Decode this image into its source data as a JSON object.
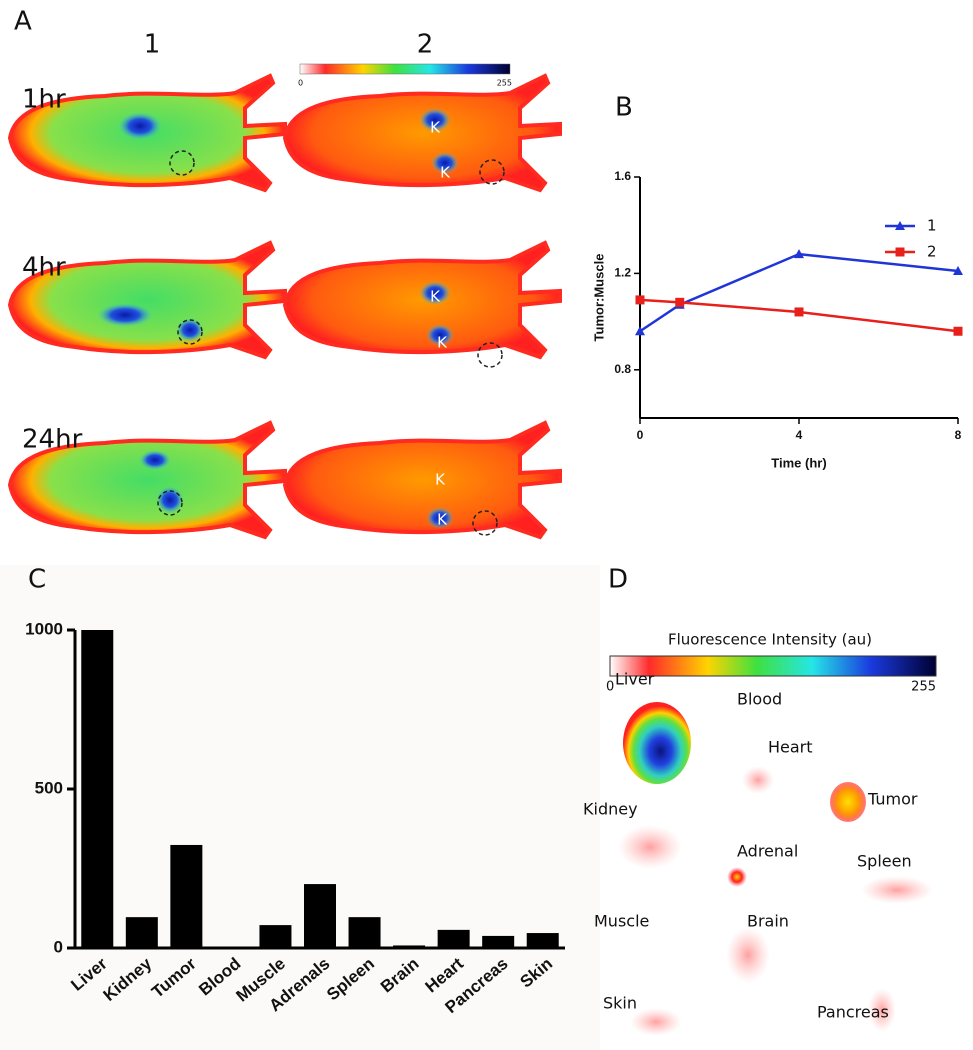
{
  "panel_a": {
    "label": "A",
    "columns": [
      "1",
      "2"
    ],
    "rows": [
      "1hr",
      "4hr",
      "24hr"
    ],
    "kidney_label": "K",
    "colorbar": {
      "min": "0",
      "max": "255"
    }
  },
  "panel_d": {
    "label": "D",
    "colorbar": {
      "title": "Fluorescence Intensity (au)",
      "min": "0",
      "max": "255"
    },
    "organs": [
      "Liver",
      "Blood",
      "Heart",
      "Tumor",
      "Kidney",
      "Adrenal",
      "Spleen",
      "Muscle",
      "Brain",
      "Skin",
      "Pancreas"
    ]
  },
  "chart_data": [
    {
      "type": "line",
      "label": "B",
      "x_label": "Time (hr)",
      "y_label": "Tumor:Muscle",
      "x": [
        0,
        1,
        4,
        8
      ],
      "xlim": [
        0,
        8
      ],
      "xticks": [
        0,
        4,
        8
      ],
      "ylim": [
        0.6,
        1.6
      ],
      "yticks": [
        0.8,
        1.2,
        1.6
      ],
      "legend": "upper right",
      "series": [
        {
          "name": "1",
          "color": "#1f35d8",
          "marker": "triangle",
          "values": [
            0.96,
            1.07,
            1.28,
            1.21
          ]
        },
        {
          "name": "2",
          "color": "#e8201c",
          "marker": "square",
          "values": [
            1.09,
            1.08,
            1.04,
            0.96
          ]
        }
      ]
    },
    {
      "type": "bar",
      "label": "C",
      "color": "#000000",
      "categories": [
        "Liver",
        "Kidney",
        "Tumor",
        "Blood",
        "Muscle",
        "Adrenals",
        "Spleen",
        "Brain",
        "Heart",
        "Pancreas",
        "Skin"
      ],
      "values": [
        1000,
        97,
        324,
        3,
        72,
        201,
        97,
        8,
        57,
        38,
        47
      ],
      "ylim": [
        0,
        1000
      ],
      "yticks": [
        0,
        500,
        1000
      ]
    }
  ]
}
